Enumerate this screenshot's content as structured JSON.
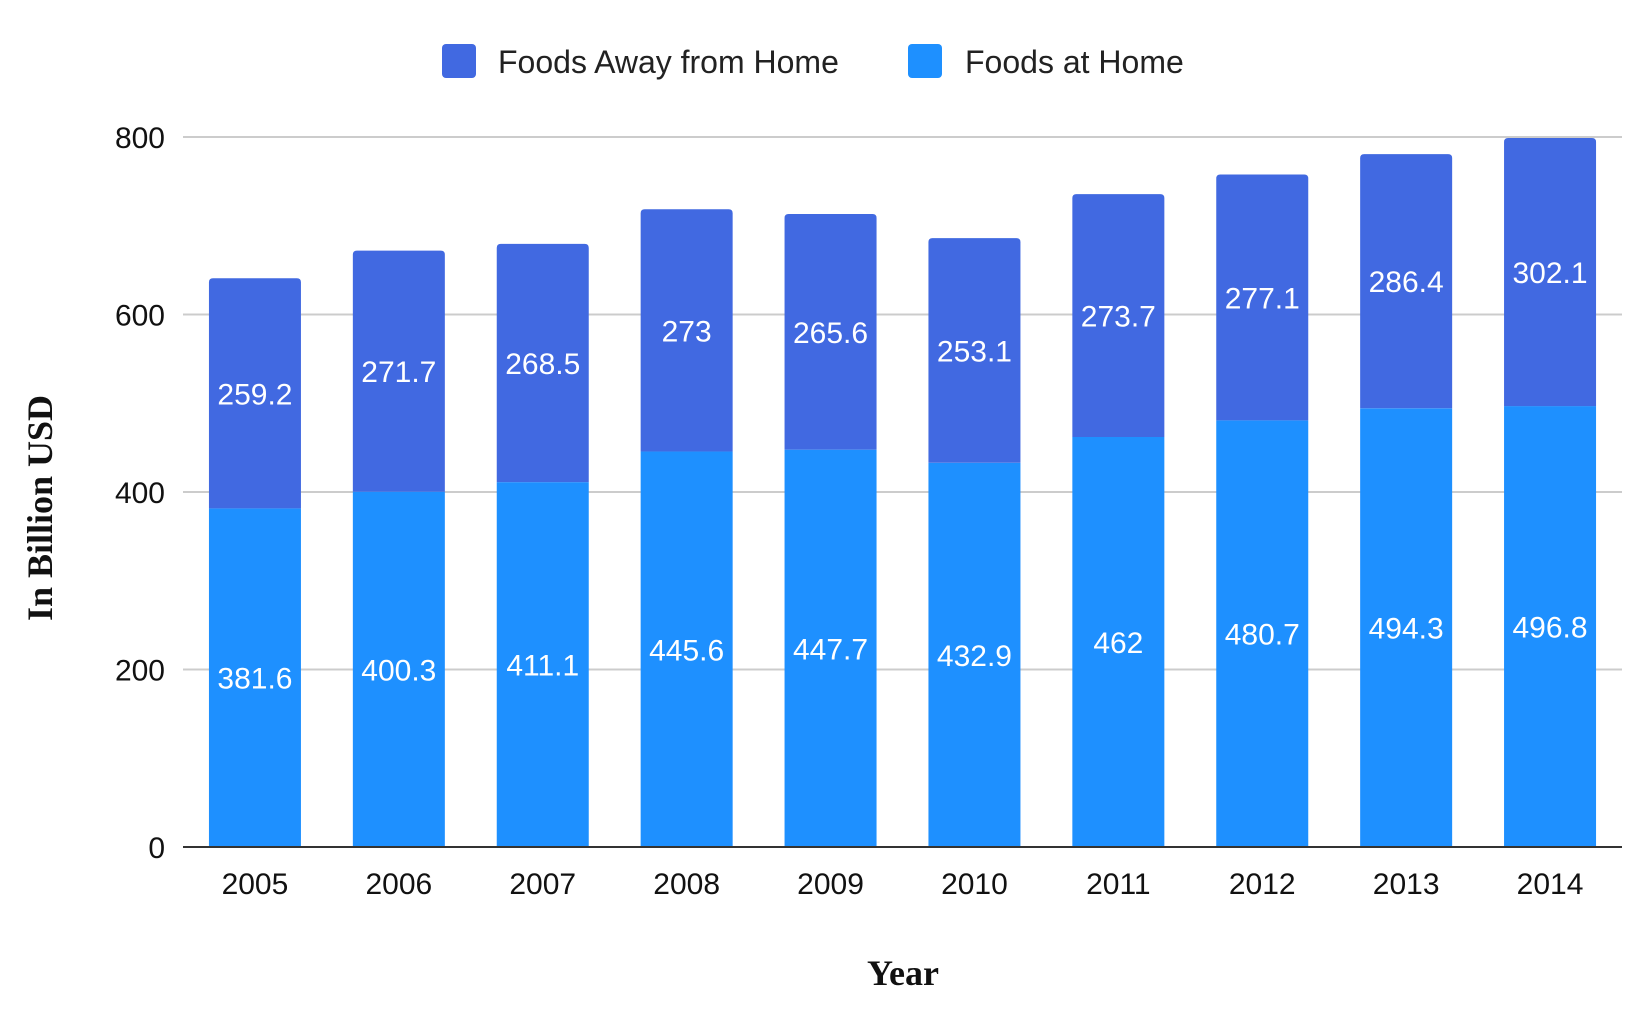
{
  "chart_data": {
    "type": "bar",
    "stacked": true,
    "categories": [
      "2005",
      "2006",
      "2007",
      "2008",
      "2009",
      "2010",
      "2011",
      "2012",
      "2013",
      "2014"
    ],
    "series": [
      {
        "name": "Foods at Home",
        "color": "#1E90FF",
        "values": [
          381.6,
          400.3,
          411.1,
          445.6,
          447.7,
          432.9,
          462,
          480.7,
          494.3,
          496.8
        ]
      },
      {
        "name": "Foods Away from Home",
        "color": "#4169E1",
        "values": [
          259.2,
          271.7,
          268.5,
          273,
          265.6,
          253.1,
          273.7,
          277.1,
          286.4,
          302.1
        ]
      }
    ],
    "legend_order": [
      "Foods Away from Home",
      "Foods at Home"
    ],
    "title": "",
    "xlabel": "Year",
    "ylabel": "In Billion USD",
    "ylim": [
      0,
      800
    ],
    "yticks": [
      "0",
      "200",
      "400",
      "600",
      "800"
    ],
    "grid": true,
    "legend_position": "top-center",
    "label_color": "#ffffff",
    "grid_color": "#cccccc"
  }
}
